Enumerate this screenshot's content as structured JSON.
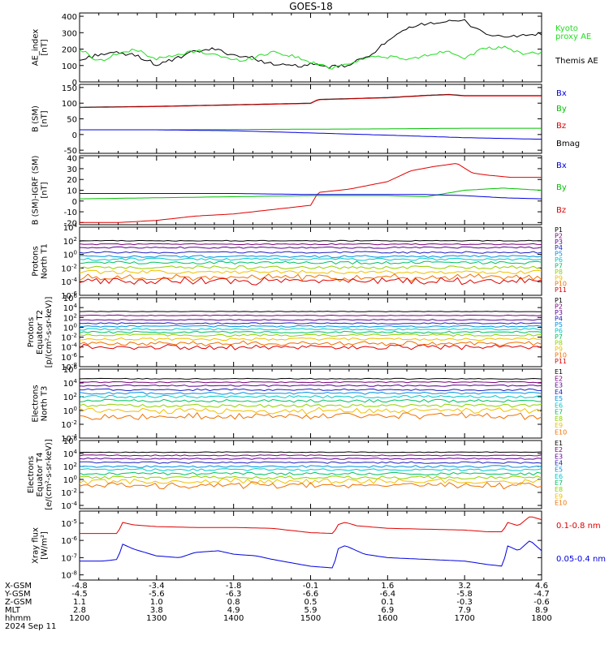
{
  "title": "GOES-18",
  "colors": {
    "black": "#000000",
    "red": "#e00000",
    "green": "#00c000",
    "blue": "#0000e0",
    "bright_green": "#22dd22",
    "cyan_green": "#18c8a0",
    "prot": [
      "#000000",
      "#7a007a",
      "#5a0090",
      "#2020c0",
      "#0090e0",
      "#00c8c8",
      "#00c060",
      "#90d000",
      "#f0c000",
      "#f07000",
      "#e00000",
      "#900000"
    ]
  },
  "chart_data": [
    {
      "type": "line",
      "ylabel": "AE_index\n[nT]",
      "yticks": [
        "400",
        "300",
        "200",
        "100",
        "0"
      ],
      "ylim": [
        0,
        420
      ],
      "series": [
        {
          "name": "Themis AE",
          "color_key": "black",
          "x": [
            0,
            0.25,
            0.5,
            0.75,
            1,
            1.25,
            1.5,
            1.75,
            2,
            2.25,
            2.5,
            2.75,
            3,
            3.25,
            3.5,
            3.75,
            4,
            4.25,
            4.5,
            4.75,
            5,
            5.25,
            5.5,
            5.75,
            6
          ],
          "values": [
            130,
            170,
            175,
            160,
            105,
            140,
            185,
            200,
            165,
            145,
            110,
            95,
            105,
            90,
            100,
            160,
            245,
            320,
            360,
            365,
            370,
            300,
            270,
            285,
            290
          ]
        },
        {
          "name": "",
          "color_key": "bright_green",
          "x": [
            0,
            0.25,
            0.5,
            0.75,
            1,
            1.25,
            1.5,
            1.75,
            2,
            2.25,
            2.5,
            2.75,
            3,
            3.25,
            3.5,
            3.75,
            4,
            4.25,
            4.5,
            4.75,
            5,
            5.25,
            5.5,
            5.75,
            6
          ],
          "values": [
            200,
            125,
            175,
            195,
            140,
            160,
            190,
            170,
            130,
            145,
            185,
            160,
            120,
            85,
            115,
            150,
            155,
            135,
            160,
            190,
            150,
            200,
            210,
            175,
            175
          ]
        }
      ],
      "labels": [
        {
          "text": "Kyoto\nproxy AE",
          "color_key": "bright_green"
        },
        {
          "text": "Themis AE",
          "color_key": "black"
        }
      ]
    },
    {
      "type": "line",
      "ylabel": "B (SM)\n[nT]",
      "yticks": [
        "150",
        "100",
        "50",
        "0",
        "-50"
      ],
      "ylim": [
        -60,
        160
      ],
      "series": [
        {
          "name": "Bmag",
          "color_key": "black",
          "x": [
            0,
            1,
            2,
            3,
            3.1,
            4,
            4.5,
            4.8,
            5,
            6
          ],
          "values": [
            87,
            90,
            95,
            100,
            112,
            118,
            125,
            128,
            124,
            124
          ]
        },
        {
          "name": "Bz",
          "color_key": "red",
          "x": [
            0,
            1,
            2,
            3,
            3.1,
            4,
            4.5,
            4.8,
            5,
            6
          ],
          "values": [
            86,
            89,
            94,
            99,
            111,
            117,
            124,
            127,
            123,
            123
          ]
        },
        {
          "name": "By",
          "color_key": "green",
          "x": [
            0,
            1,
            2,
            3,
            4,
            5,
            6
          ],
          "values": [
            15,
            15,
            16,
            17,
            18,
            20,
            20
          ]
        },
        {
          "name": "Bx",
          "color_key": "blue",
          "x": [
            0,
            1,
            2,
            3,
            4,
            5,
            6
          ],
          "values": [
            15,
            15,
            12,
            5,
            -2,
            -10,
            -15
          ]
        }
      ],
      "labels": [
        {
          "text": "Bx",
          "color_key": "blue"
        },
        {
          "text": "By",
          "color_key": "green"
        },
        {
          "text": "Bz",
          "color_key": "red"
        },
        {
          "text": "Bmag",
          "color_key": "black"
        }
      ]
    },
    {
      "type": "line",
      "ylabel": "B (SM)-IGRF (SM)\n[nT]",
      "yticks": [
        "40",
        "30",
        "20",
        "10",
        "0",
        "-10",
        "-20"
      ],
      "ylim": [
        -22,
        42
      ],
      "series": [
        {
          "name": "Bz",
          "color_key": "red",
          "x": [
            0,
            0.5,
            1,
            1.5,
            2,
            2.5,
            3,
            3.1,
            3.5,
            4,
            4.3,
            4.6,
            4.9,
            5.1,
            5.3,
            5.6,
            6
          ],
          "values": [
            -20,
            -20,
            -18,
            -14,
            -12,
            -8,
            -4,
            8,
            11,
            18,
            28,
            32,
            35,
            26,
            24,
            22,
            22
          ]
        },
        {
          "name": "By",
          "color_key": "green",
          "x": [
            0,
            1,
            2,
            3,
            4,
            4.5,
            5,
            5.5,
            6
          ],
          "values": [
            2,
            3,
            4,
            5,
            5,
            4,
            10,
            12,
            10
          ]
        },
        {
          "name": "Bx",
          "color_key": "blue",
          "x": [
            0,
            1,
            2,
            3,
            4,
            4.5,
            5,
            5.5,
            6
          ],
          "values": [
            7,
            7,
            7,
            6,
            6,
            6,
            5,
            3,
            2
          ]
        }
      ],
      "labels": [
        {
          "text": "Bx",
          "color_key": "blue"
        },
        {
          "text": "By",
          "color_key": "green"
        },
        {
          "text": "Bz",
          "color_key": "red"
        }
      ]
    },
    {
      "type": "line",
      "scale": "log",
      "ylabel": "Protons\nNorth T1",
      "yticks": [
        "10^4",
        "10^2",
        "10^0",
        "10^-2",
        "10^-4",
        "10^-6"
      ],
      "ylim_exp": [
        -6,
        4
      ],
      "levels": [
        2.0,
        1.5,
        1.0,
        0.3,
        -0.3,
        -0.7,
        -1.2,
        -1.9,
        -2.6,
        -3.4,
        -3.9
      ],
      "labels": [
        "P1",
        "P2",
        "P3",
        "P4",
        "P5",
        "P6",
        "P7",
        "P8",
        "P9",
        "P10",
        "P11"
      ]
    },
    {
      "type": "line",
      "scale": "log",
      "ylabel": "Protons\nEquator T2\n[p/(cm²-s-sr-keV)]",
      "yticks": [
        "10^6",
        "10^4",
        "10^2",
        "10^0",
        "10^-2",
        "10^-4",
        "10^-6",
        "10^-8"
      ],
      "ylim_exp": [
        -8,
        6
      ],
      "levels": [
        3.2,
        2.4,
        1.5,
        0.8,
        0.2,
        -0.4,
        -1.0,
        -1.6,
        -2.4,
        -3.3,
        -4.0
      ],
      "labels": [
        "P1",
        "P2",
        "P3",
        "P4",
        "P5",
        "P6",
        "P7",
        "P8",
        "P9",
        "P10",
        "P11"
      ]
    },
    {
      "type": "line",
      "scale": "log",
      "ylabel": "Electrons\nNorth T3",
      "yticks": [
        "10^6",
        "10^4",
        "10^2",
        "10^0",
        "10^-2",
        "10^-4"
      ],
      "ylim_exp": [
        -4,
        6
      ],
      "levels": [
        4.6,
        4.1,
        3.6,
        3.0,
        2.5,
        2.0,
        1.4,
        0.7,
        0.0,
        -0.8
      ],
      "labels": [
        "E1",
        "E2",
        "E3",
        "E4",
        "E5",
        "E6",
        "E7",
        "E8",
        "E9",
        "E10"
      ]
    },
    {
      "type": "line",
      "scale": "log",
      "ylabel": "Electrons\nEquator T4\n[e/(cm²-s-sr-keV)]",
      "yticks": [
        "10^6",
        "10^4",
        "10^2",
        "10^0",
        "10^-2",
        "10^-4"
      ],
      "ylim_exp": [
        -4.5,
        6
      ],
      "levels": [
        4.2,
        3.7,
        3.2,
        2.6,
        2.0,
        1.5,
        0.9,
        0.3,
        -0.3,
        -0.9
      ],
      "labels": [
        "E1",
        "E2",
        "E3",
        "E4",
        "E5",
        "E6",
        "E7",
        "E8",
        "E9",
        "E10"
      ]
    },
    {
      "type": "line",
      "scale": "log",
      "ylabel": "Xray flux\n[W/m²]",
      "yticks": [
        "10^-5",
        "10^-6",
        "10^-7",
        "10^-8"
      ],
      "ylim_exp": [
        -8.3,
        -4.3
      ],
      "series": [
        {
          "name": "0.1-0.8 nm",
          "color_key": "red",
          "x": [
            0,
            0.3,
            0.5,
            0.55,
            0.7,
            1,
            1.5,
            2,
            2.5,
            3,
            3.3,
            3.35,
            3.45,
            3.6,
            4,
            4.5,
            5,
            5.3,
            5.5,
            5.55,
            5.7,
            5.85,
            6
          ],
          "values": [
            -5.6,
            -5.6,
            -5.6,
            -4.95,
            -5.1,
            -5.2,
            -5.25,
            -5.25,
            -5.3,
            -5.55,
            -5.6,
            -5.1,
            -4.95,
            -5.15,
            -5.3,
            -5.35,
            -5.4,
            -5.5,
            -5.5,
            -4.95,
            -5.15,
            -4.6,
            -4.8
          ]
        },
        {
          "name": "0.05-0.4 nm",
          "color_key": "blue",
          "x": [
            0,
            0.3,
            0.5,
            0.55,
            0.7,
            1,
            1.3,
            1.5,
            1.8,
            2,
            2.3,
            2.5,
            3,
            3.3,
            3.35,
            3.45,
            3.7,
            4,
            4.5,
            5,
            5.3,
            5.5,
            5.55,
            5.7,
            5.85,
            6
          ],
          "values": [
            -7.2,
            -7.2,
            -7.1,
            -6.2,
            -6.5,
            -6.9,
            -7.0,
            -6.7,
            -6.6,
            -6.8,
            -6.9,
            -7.1,
            -7.5,
            -7.6,
            -6.5,
            -6.3,
            -6.8,
            -7.0,
            -7.1,
            -7.2,
            -7.4,
            -7.5,
            -6.3,
            -6.6,
            -6.0,
            -6.6
          ]
        }
      ],
      "labels": [
        {
          "text": "0.1-0.8 nm",
          "color_key": "red"
        },
        {
          "text": "0.05-0.4 nm",
          "color_key": "blue"
        }
      ]
    }
  ],
  "axis_rows": {
    "row_labels": [
      "X-GSM",
      "Y-GSM",
      "Z-GSM",
      "MLT",
      "hhmm",
      "2024 Sep 11"
    ],
    "columns": [
      [
        "-4.8",
        "-4.5",
        "1.1",
        "2.8",
        "1200"
      ],
      [
        "-3.4",
        "-5.6",
        "1.0",
        "3.8",
        "1300"
      ],
      [
        "-1.8",
        "-6.3",
        "0.8",
        "4.9",
        "1400"
      ],
      [
        "-0.1",
        "-6.6",
        "0.5",
        "5.9",
        "1500"
      ],
      [
        "1.6",
        "-6.4",
        "0.1",
        "6.9",
        "1600"
      ],
      [
        "3.2",
        "-5.8",
        "-0.3",
        "7.9",
        "1700"
      ],
      [
        "4.6",
        "-4.7",
        "-0.6",
        "8.9",
        "1800"
      ]
    ]
  }
}
